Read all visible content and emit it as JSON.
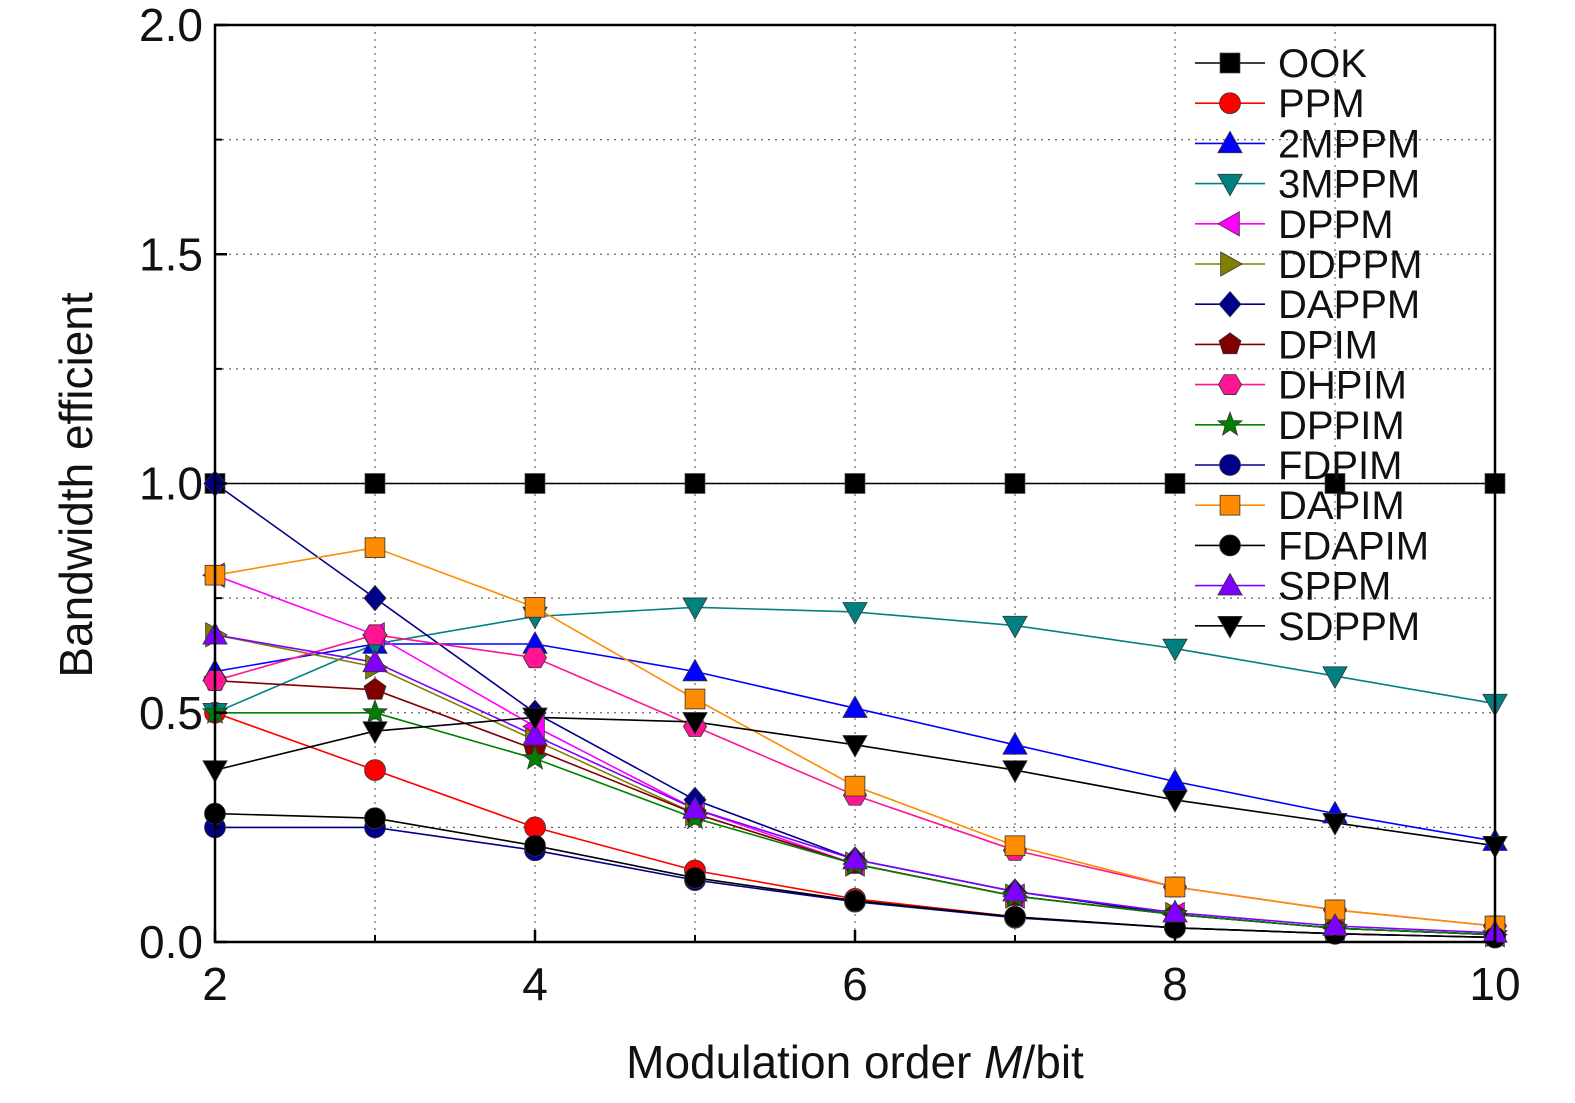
{
  "chart_data": {
    "type": "line",
    "title": "",
    "xlabel_prefix": "Modulation order ",
    "xlabel_italic": "M",
    "xlabel_suffix": "/bit",
    "ylabel": "Bandwidth efficient",
    "xlim": [
      2,
      10
    ],
    "ylim": [
      0,
      2.0
    ],
    "xticks": [
      2,
      4,
      6,
      8,
      10
    ],
    "xtick_labels": [
      "2",
      "4",
      "6",
      "8",
      "10"
    ],
    "yticks": [
      0,
      0.5,
      1.0,
      1.5,
      2.0
    ],
    "ytick_labels": [
      "0.0",
      "0.5",
      "1.0",
      "1.5",
      "2.0"
    ],
    "grid": true,
    "legend_position": "top-right",
    "x": [
      2,
      3,
      4,
      5,
      6,
      7,
      8,
      9,
      10
    ],
    "series": [
      {
        "name": "OOK",
        "color": "#000000",
        "marker": "square",
        "values": [
          1.0,
          1.0,
          1.0,
          1.0,
          1.0,
          1.0,
          1.0,
          1.0,
          1.0
        ]
      },
      {
        "name": "PPM",
        "color": "#ff0000",
        "marker": "circle",
        "values": [
          0.5,
          0.375,
          0.25,
          0.156,
          0.094,
          0.055,
          0.031,
          0.018,
          0.01
        ]
      },
      {
        "name": "2MPPM",
        "color": "#0000ff",
        "marker": "triangle-up",
        "values": [
          0.59,
          0.65,
          0.65,
          0.59,
          0.51,
          0.43,
          0.35,
          0.28,
          0.22
        ]
      },
      {
        "name": "3MPPM",
        "color": "#008080",
        "marker": "triangle-down",
        "values": [
          0.5,
          0.65,
          0.71,
          0.73,
          0.72,
          0.69,
          0.64,
          0.58,
          0.52
        ]
      },
      {
        "name": "DPPM",
        "color": "#ff00ff",
        "marker": "triangle-left",
        "values": [
          0.8,
          0.67,
          0.47,
          0.29,
          0.17,
          0.1,
          0.06,
          0.03,
          0.016
        ]
      },
      {
        "name": "DDPPM",
        "color": "#808000",
        "marker": "triangle-right",
        "values": [
          0.67,
          0.6,
          0.44,
          0.28,
          0.17,
          0.1,
          0.06,
          0.03,
          0.016
        ]
      },
      {
        "name": "DAPPM",
        "color": "#00008b",
        "marker": "diamond",
        "values": [
          1.0,
          0.75,
          0.5,
          0.31,
          0.18,
          0.11,
          0.06,
          0.03,
          0.016
        ]
      },
      {
        "name": "DPIM",
        "color": "#800000",
        "marker": "pentagon",
        "values": [
          0.57,
          0.55,
          0.42,
          0.28,
          0.17,
          0.1,
          0.06,
          0.03,
          0.016
        ]
      },
      {
        "name": "DHPIM",
        "color": "#ff1493",
        "marker": "hexagon",
        "values": [
          0.57,
          0.67,
          0.62,
          0.47,
          0.32,
          0.2,
          0.12,
          0.07,
          0.035
        ]
      },
      {
        "name": "DPPIM",
        "color": "#008000",
        "marker": "star",
        "values": [
          0.5,
          0.5,
          0.4,
          0.27,
          0.17,
          0.1,
          0.06,
          0.03,
          0.016
        ]
      },
      {
        "name": "FDPIM",
        "color": "#00008b",
        "marker": "circle",
        "values": [
          0.25,
          0.25,
          0.2,
          0.135,
          0.088,
          0.053,
          0.031,
          0.018,
          0.01
        ]
      },
      {
        "name": "DAPIM",
        "color": "#ff8c00",
        "marker": "square",
        "values": [
          0.8,
          0.86,
          0.73,
          0.53,
          0.34,
          0.21,
          0.12,
          0.07,
          0.035
        ]
      },
      {
        "name": "FDAPIM",
        "color": "#000000",
        "marker": "circle",
        "values": [
          0.28,
          0.27,
          0.21,
          0.14,
          0.09,
          0.055,
          0.031,
          0.018,
          0.01
        ]
      },
      {
        "name": "SPPM",
        "color": "#8000ff",
        "marker": "triangle-up",
        "values": [
          0.67,
          0.61,
          0.45,
          0.29,
          0.18,
          0.11,
          0.064,
          0.035,
          0.02
        ]
      },
      {
        "name": "SDPPM",
        "color": "#000000",
        "marker": "triangle-down",
        "values": [
          0.375,
          0.46,
          0.49,
          0.48,
          0.43,
          0.375,
          0.31,
          0.26,
          0.21
        ]
      }
    ]
  }
}
